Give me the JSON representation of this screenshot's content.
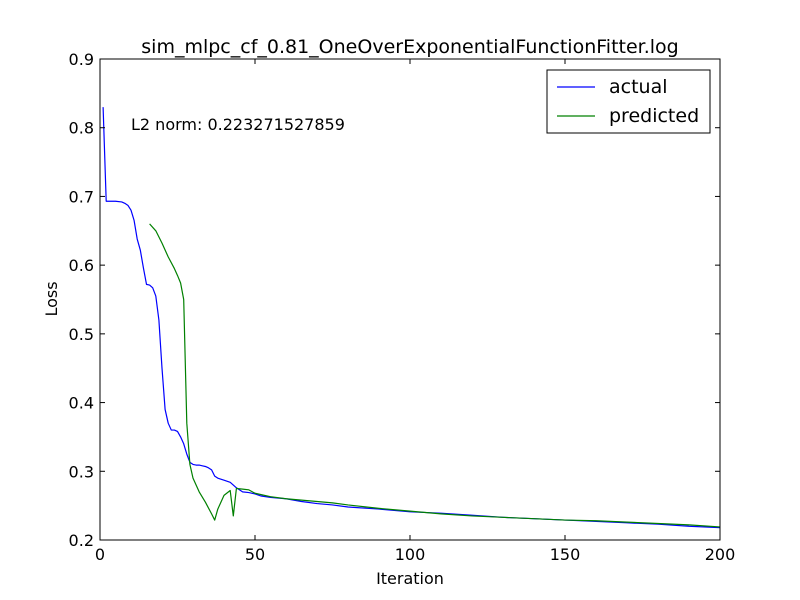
{
  "chart_data": {
    "type": "line",
    "title": "sim_mlpc_cf_0.81_OneOverExponentialFunctionFitter.log",
    "xlabel": "Iteration",
    "ylabel": "Loss",
    "xlim": [
      0,
      200
    ],
    "ylim": [
      0.2,
      0.9
    ],
    "xticks": [
      0,
      50,
      100,
      150,
      200
    ],
    "yticks": [
      0.2,
      0.3,
      0.4,
      0.5,
      0.6,
      0.7,
      0.8,
      0.9
    ],
    "xtick_labels": [
      "0",
      "50",
      "100",
      "150",
      "200"
    ],
    "ytick_labels": [
      "0.2",
      "0.3",
      "0.4",
      "0.5",
      "0.6",
      "0.7",
      "0.8",
      "0.9"
    ],
    "grid": false,
    "legend_position": "top-right",
    "annotation": "L2 norm: 0.223271527859",
    "series": [
      {
        "name": "actual",
        "color": "#0000ff",
        "x": [
          1,
          2,
          3,
          5,
          7,
          8,
          9,
          10,
          11,
          12,
          13,
          14,
          15,
          16,
          17,
          18,
          19,
          20,
          21,
          22,
          23,
          24,
          25,
          26,
          27,
          28,
          29,
          30,
          31,
          32,
          33,
          34,
          35,
          36,
          37,
          38,
          40,
          42,
          44,
          46,
          48,
          50,
          52,
          55,
          60,
          65,
          70,
          75,
          80,
          90,
          100,
          110,
          120,
          130,
          140,
          150,
          160,
          170,
          180,
          190,
          200
        ],
        "y": [
          0.83,
          0.693,
          0.693,
          0.693,
          0.692,
          0.69,
          0.687,
          0.68,
          0.665,
          0.638,
          0.622,
          0.596,
          0.572,
          0.571,
          0.567,
          0.555,
          0.52,
          0.45,
          0.39,
          0.37,
          0.36,
          0.36,
          0.358,
          0.35,
          0.34,
          0.325,
          0.313,
          0.31,
          0.309,
          0.309,
          0.308,
          0.307,
          0.305,
          0.302,
          0.293,
          0.29,
          0.287,
          0.284,
          0.276,
          0.27,
          0.269,
          0.267,
          0.264,
          0.262,
          0.26,
          0.256,
          0.253,
          0.251,
          0.248,
          0.245,
          0.241,
          0.239,
          0.236,
          0.233,
          0.231,
          0.229,
          0.227,
          0.225,
          0.223,
          0.22,
          0.218
        ]
      },
      {
        "name": "predicted",
        "color": "#008000",
        "x": [
          16,
          18,
          20,
          22,
          24,
          25,
          26,
          27,
          28,
          29,
          30,
          32,
          34,
          36,
          37,
          38,
          40,
          42,
          43,
          44,
          46,
          48,
          50,
          55,
          60,
          65,
          70,
          75,
          80,
          90,
          100,
          110,
          120,
          130,
          140,
          150,
          160,
          170,
          180,
          190,
          200
        ],
        "y": [
          0.66,
          0.65,
          0.632,
          0.612,
          0.595,
          0.585,
          0.574,
          0.55,
          0.37,
          0.31,
          0.29,
          0.27,
          0.255,
          0.238,
          0.229,
          0.245,
          0.265,
          0.272,
          0.235,
          0.275,
          0.274,
          0.273,
          0.268,
          0.263,
          0.26,
          0.258,
          0.256,
          0.254,
          0.251,
          0.246,
          0.242,
          0.238,
          0.235,
          0.233,
          0.231,
          0.229,
          0.228,
          0.226,
          0.224,
          0.222,
          0.219
        ]
      }
    ]
  }
}
